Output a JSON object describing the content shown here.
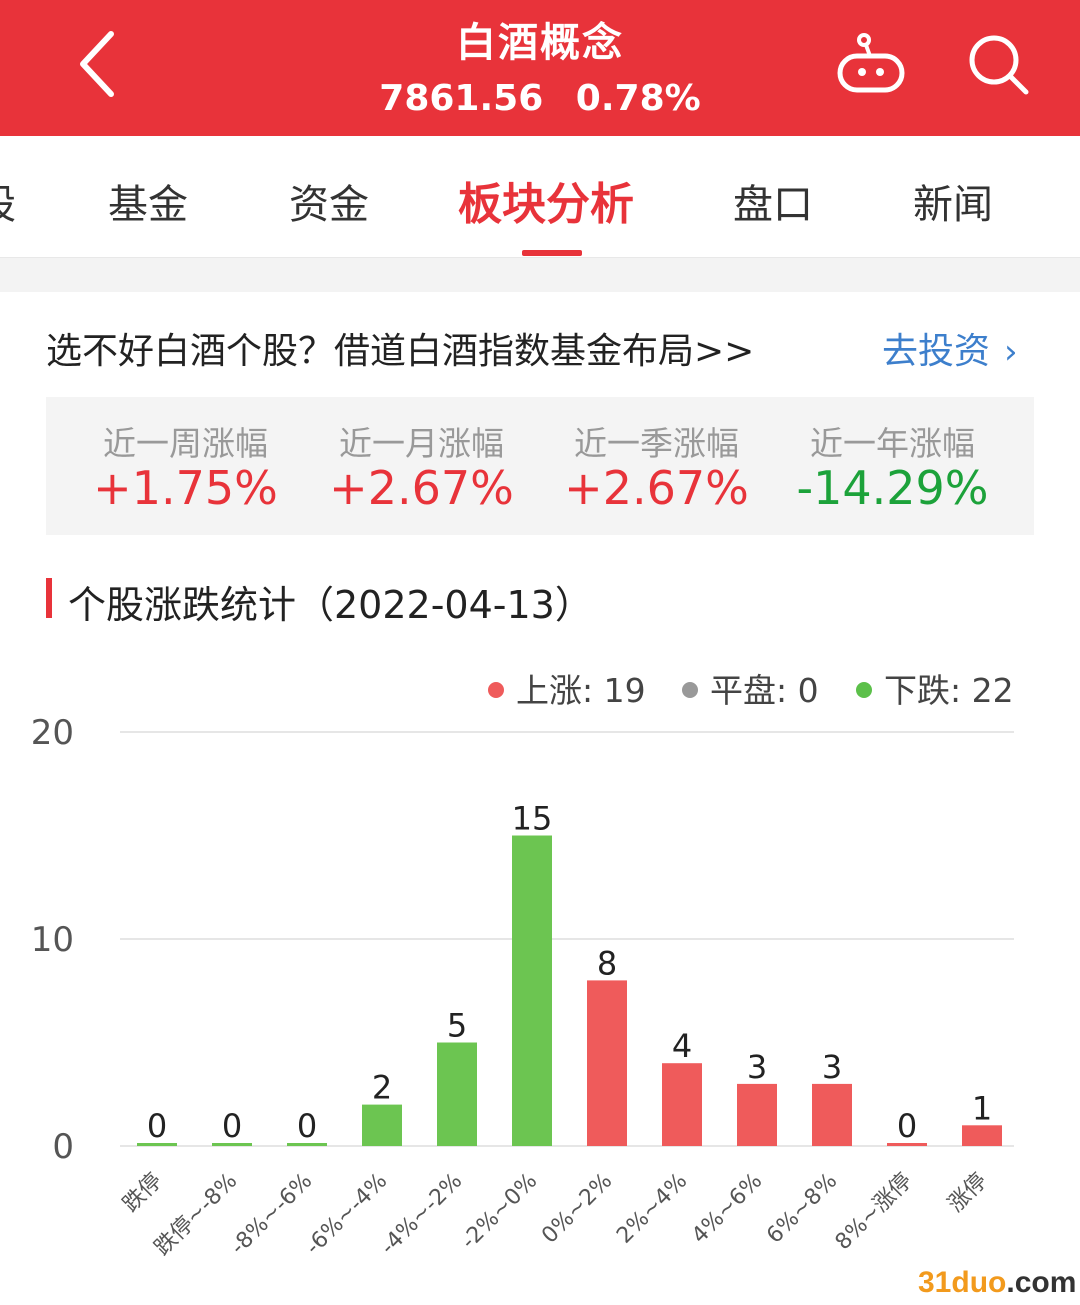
{
  "header": {
    "title": "白酒概念",
    "index_value": "7861.56",
    "change_percent": "0.78%",
    "icons": {
      "back": "chevron-left-icon",
      "robot": "robot-icon",
      "search": "search-icon"
    }
  },
  "tabs": [
    {
      "label": "股"
    },
    {
      "label": "基金"
    },
    {
      "label": "资金"
    },
    {
      "label": "板块分析",
      "active": true
    },
    {
      "label": "盘口"
    },
    {
      "label": "新闻"
    }
  ],
  "promo": {
    "text": "选不好白酒个股？借道白酒指数基金布局>>",
    "link": "去投资"
  },
  "stats": [
    {
      "label": "近一周涨幅",
      "value": "+1.75%",
      "direction": "up"
    },
    {
      "label": "近一月涨幅",
      "value": "+2.67%",
      "direction": "up"
    },
    {
      "label": "近一季涨幅",
      "value": "+2.67%",
      "direction": "up"
    },
    {
      "label": "近一年涨幅",
      "value": "-14.29%",
      "direction": "down"
    }
  ],
  "section": {
    "title": "个股涨跌统计（2022-04-13）"
  },
  "legend": [
    {
      "label": "上涨: 19",
      "color": "#ef5b5b"
    },
    {
      "label": "平盘: 0",
      "color": "#999999"
    },
    {
      "label": "下跌: 22",
      "color": "#5cc04a"
    }
  ],
  "colors": {
    "rise": "#ef5b5b",
    "fall": "#6cc551",
    "accent": "#e8333a",
    "link": "#3d7fcc"
  },
  "chart_data": {
    "type": "bar",
    "categories": [
      "跌停",
      "跌停~-8%",
      "-8%~-6%",
      "-6%~-4%",
      "-4%~-2%",
      "-2%~0%",
      "0%~2%",
      "2%~4%",
      "4%~6%",
      "6%~8%",
      "8%~涨停",
      "涨停"
    ],
    "values": [
      0,
      0,
      0,
      2,
      5,
      15,
      8,
      4,
      3,
      3,
      0,
      1
    ],
    "bar_colors": [
      "fall",
      "fall",
      "fall",
      "fall",
      "fall",
      "fall",
      "rise",
      "rise",
      "rise",
      "rise",
      "rise",
      "rise"
    ],
    "yticks": [
      0,
      10,
      20
    ],
    "ylim": [
      0,
      20
    ],
    "grid": true
  },
  "watermark": {
    "number": "31",
    "name": "duo",
    "domain": ".com"
  }
}
